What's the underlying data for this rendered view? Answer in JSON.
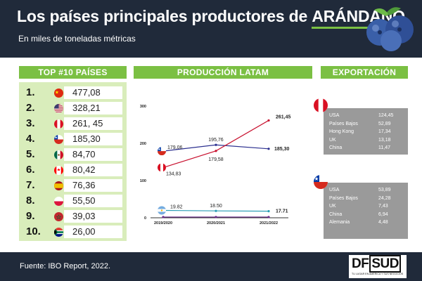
{
  "header": {
    "title_main": "Los países principales productores de ",
    "title_highlight": "ARÁNDANO",
    "subtitle": "En miles de toneladas métricas"
  },
  "sections": {
    "top_title": "TOP #10 PAÍSES",
    "latam_title": "PRODUCCIÓN LATAM",
    "export_title": "EXPORTACIÓN"
  },
  "top10": [
    {
      "rank": "1.",
      "flag": "china-flag-icon",
      "value": "477,08"
    },
    {
      "rank": "2.",
      "flag": "usa-flag-icon",
      "value": "328,21"
    },
    {
      "rank": "3.",
      "flag": "peru-flag-icon",
      "value": "261, 45"
    },
    {
      "rank": "4.",
      "flag": "chile-flag-icon",
      "value": "185,30"
    },
    {
      "rank": "5.",
      "flag": "mexico-flag-icon",
      "value": "84,70"
    },
    {
      "rank": "6.",
      "flag": "canada-flag-icon",
      "value": "80,42"
    },
    {
      "rank": "7.",
      "flag": "spain-flag-icon",
      "value": "76,36"
    },
    {
      "rank": "8.",
      "flag": "poland-flag-icon",
      "value": "55,50"
    },
    {
      "rank": "9.",
      "flag": "morocco-flag-icon",
      "value": "39,03"
    },
    {
      "rank": "10.",
      "flag": "south-africa-flag-icon",
      "value": "26,00"
    }
  ],
  "chart_data": {
    "type": "line",
    "title": "PRODUCCIÓN LATAM",
    "categories": [
      "2019/2020",
      "2020/2021",
      "2021/2022"
    ],
    "ylim": [
      0,
      300
    ],
    "yticks": [
      "0",
      "100",
      "200",
      "300"
    ],
    "grid": false,
    "series": [
      {
        "flag": "chile-flag-icon",
        "color": "#2b2f8f",
        "values": [
          179.06,
          195.76,
          185.3
        ],
        "labels": [
          "179,06",
          "195,76",
          "185,30"
        ]
      },
      {
        "flag": "peru-flag-icon",
        "color": "#c8102e",
        "values": [
          134.83,
          179.58,
          261.45
        ],
        "labels": [
          "134,83",
          "179,58",
          "261,45"
        ]
      },
      {
        "flag": "argentina-flag-icon",
        "color": "#2a9db5",
        "values": [
          19.82,
          18.5,
          17.71
        ],
        "labels": [
          "19.82",
          "18.50",
          "17.71"
        ]
      },
      {
        "flag": "",
        "color": "#6a2a8a",
        "values": [
          2,
          2,
          2
        ],
        "labels": [
          "",
          "",
          ""
        ]
      }
    ]
  },
  "exports": {
    "peru": {
      "flag": "peru-flag-icon",
      "rows": [
        {
          "name": "USA",
          "value": "124,45"
        },
        {
          "name": "Países Bajos",
          "value": "52,89"
        },
        {
          "name": "Hong Kong",
          "value": "17,34"
        },
        {
          "name": "UK",
          "value": "13,18"
        },
        {
          "name": "China",
          "value": "11,47"
        }
      ]
    },
    "chile": {
      "flag": "chile-flag-icon",
      "rows": [
        {
          "name": "USA",
          "value": "53,89"
        },
        {
          "name": "Países Bajos",
          "value": "24,28"
        },
        {
          "name": "UK",
          "value": "7,43"
        },
        {
          "name": "China",
          "value": "6,94"
        },
        {
          "name": "Alemania",
          "value": "4,48"
        }
      ]
    }
  },
  "footer": {
    "source": "Fuente: IBO Report, 2022.",
    "logo_df": "DF",
    "logo_sud": "SUD",
    "logo_tag": "TU LUGAR EN AMÉRICA Y SUS NEGOCIOS"
  },
  "colors": {
    "header_bg": "#202a3a",
    "accent_green": "#7bc043",
    "panel_green": "#d9edbb",
    "export_gray": "#9a9a9a",
    "chile_line": "#2b2f8f",
    "peru_line": "#c8102e",
    "argentina_line": "#2a9db5"
  }
}
